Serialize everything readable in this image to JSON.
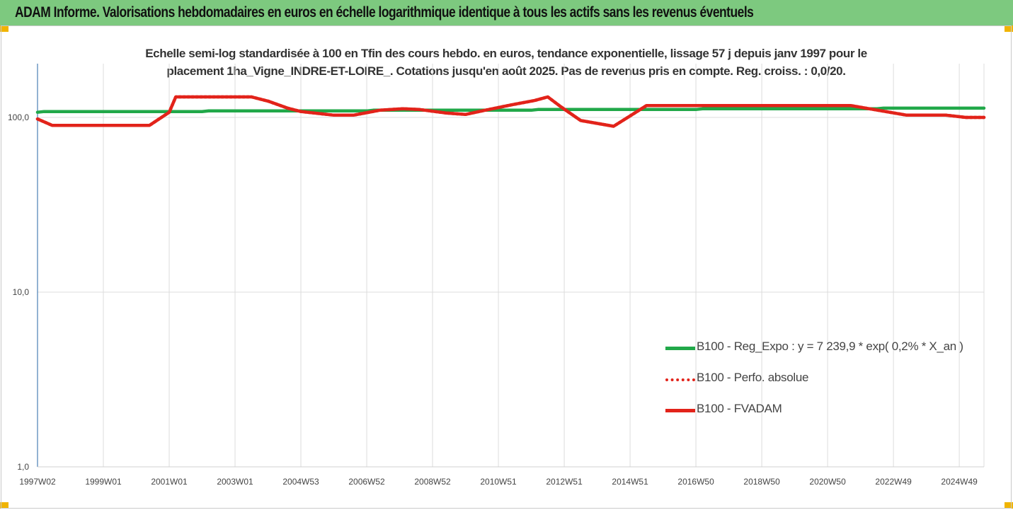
{
  "header": {
    "title": "ADAM Informe. Valorisations hebdomadaires en euros en échelle logarithmique identique à tous les actifs sans les revenus éventuels"
  },
  "chart_data": {
    "type": "line",
    "title": "Echelle semi-log standardisée à 100 en Tfin des cours hebdo. en euros, tendance exponentielle, lissage 57 j depuis janv 1997 pour le placement 1ha_Vigne_INDRE-ET-LOIRE_. Cotations jusqu'en août 2025. Pas de revenus pris en compte. Reg. croiss. : 0,0/20.",
    "title_lines": [
      "Echelle semi-log standardisée à 100 en Tfin des cours hebdo. en euros, tendance exponentielle, lissage 57 j depuis janv 1997 pour le",
      "placement 1ha_Vigne_INDRE-ET-LOIRE_. Cotations jusqu'en août 2025. Pas de revenus pris en compte. Reg. croiss. : 0,0/20."
    ],
    "y_scale": "log",
    "ylim": [
      1,
      200
    ],
    "y_ticks": [
      {
        "value": 1,
        "label": "1,0"
      },
      {
        "value": 10,
        "label": "10,0"
      },
      {
        "value": 100,
        "label": "100,0"
      }
    ],
    "xlim": [
      1997.0,
      2025.75
    ],
    "x_ticks": [
      {
        "value": 1997.0,
        "label": "1997W02"
      },
      {
        "value": 1999.0,
        "label": "1999W01"
      },
      {
        "value": 2001.0,
        "label": "2001W01"
      },
      {
        "value": 2003.0,
        "label": "2003W01"
      },
      {
        "value": 2005.0,
        "label": "2004W53"
      },
      {
        "value": 2007.0,
        "label": "2006W52"
      },
      {
        "value": 2009.0,
        "label": "2008W52"
      },
      {
        "value": 2011.0,
        "label": "2010W51"
      },
      {
        "value": 2013.0,
        "label": "2012W51"
      },
      {
        "value": 2015.0,
        "label": "2014W51"
      },
      {
        "value": 2017.0,
        "label": "2016W50"
      },
      {
        "value": 2019.0,
        "label": "2018W50"
      },
      {
        "value": 2021.0,
        "label": "2020W50"
      },
      {
        "value": 2023.0,
        "label": "2022W49"
      },
      {
        "value": 2025.0,
        "label": "2024W49"
      }
    ],
    "grid": "vertical",
    "legend_position": "right-center",
    "series": [
      {
        "name": "B100 - Reg_Expo : y = 7 239,9 * exp( 0,2% *  X_an )",
        "color": "#21a849",
        "style": "solid",
        "points": [
          [
            1997.0,
            107
          ],
          [
            1997.2,
            108
          ],
          [
            2002.0,
            108
          ],
          [
            2002.2,
            109
          ],
          [
            2007.0,
            109
          ],
          [
            2007.2,
            110
          ],
          [
            2012.0,
            110
          ],
          [
            2012.2,
            111
          ],
          [
            2017.0,
            111
          ],
          [
            2017.2,
            112
          ],
          [
            2022.5,
            112
          ],
          [
            2022.7,
            113
          ],
          [
            2025.75,
            113
          ]
        ]
      },
      {
        "name": "B100 - Perfo. absolue",
        "color": "#e2231a",
        "style": "dotted",
        "points": [
          [
            1997.0,
            98
          ],
          [
            1997.45,
            90
          ],
          [
            2000.4,
            90
          ],
          [
            2001.0,
            107
          ],
          [
            2001.2,
            131
          ],
          [
            2003.5,
            131
          ],
          [
            2004.0,
            124
          ],
          [
            2004.6,
            113
          ],
          [
            2005.0,
            108
          ],
          [
            2006.0,
            103
          ],
          [
            2006.6,
            103
          ],
          [
            2007.4,
            110
          ],
          [
            2008.1,
            112
          ],
          [
            2008.6,
            111
          ],
          [
            2009.4,
            106
          ],
          [
            2010.0,
            104
          ],
          [
            2010.6,
            110
          ],
          [
            2011.4,
            118
          ],
          [
            2012.1,
            125
          ],
          [
            2012.5,
            131
          ],
          [
            2012.9,
            115
          ],
          [
            2013.5,
            96
          ],
          [
            2014.5,
            89
          ],
          [
            2015.0,
            102
          ],
          [
            2015.5,
            117
          ],
          [
            2016.0,
            117
          ],
          [
            2021.7,
            117
          ],
          [
            2022.4,
            111
          ],
          [
            2023.4,
            103
          ],
          [
            2024.6,
            103
          ],
          [
            2025.2,
            100
          ],
          [
            2025.75,
            100
          ]
        ]
      },
      {
        "name": "B100 - FVADAM",
        "color": "#e2231a",
        "style": "solid",
        "points": [
          [
            1997.0,
            98
          ],
          [
            1997.45,
            90
          ],
          [
            2000.4,
            90
          ],
          [
            2001.0,
            107
          ],
          [
            2001.2,
            131
          ],
          [
            2003.5,
            131
          ],
          [
            2004.0,
            124
          ],
          [
            2004.6,
            113
          ],
          [
            2005.0,
            108
          ],
          [
            2006.0,
            103
          ],
          [
            2006.6,
            103
          ],
          [
            2007.4,
            110
          ],
          [
            2008.1,
            112
          ],
          [
            2008.6,
            111
          ],
          [
            2009.4,
            106
          ],
          [
            2010.0,
            104
          ],
          [
            2010.6,
            110
          ],
          [
            2011.4,
            118
          ],
          [
            2012.1,
            125
          ],
          [
            2012.5,
            131
          ],
          [
            2012.9,
            115
          ],
          [
            2013.5,
            96
          ],
          [
            2014.5,
            89
          ],
          [
            2015.0,
            102
          ],
          [
            2015.5,
            117
          ],
          [
            2016.0,
            117
          ],
          [
            2021.7,
            117
          ],
          [
            2022.4,
            111
          ],
          [
            2023.4,
            103
          ],
          [
            2024.6,
            103
          ],
          [
            2025.2,
            100
          ],
          [
            2025.75,
            100
          ]
        ]
      }
    ]
  }
}
